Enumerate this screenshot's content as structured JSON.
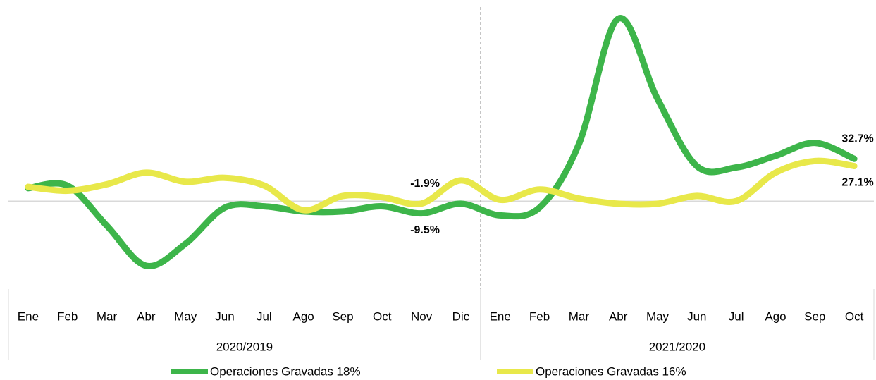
{
  "chart_data": {
    "type": "line",
    "groups": [
      {
        "name": "2020/2019",
        "categories": [
          "Ene",
          "Feb",
          "Mar",
          "Abr",
          "May",
          "Jun",
          "Jul",
          "Ago",
          "Sep",
          "Oct",
          "Nov",
          "Dic"
        ]
      },
      {
        "name": "2021/2020",
        "categories": [
          "Ene",
          "Feb",
          "Mar",
          "Abr",
          "May",
          "Jun",
          "Jul",
          "Ago",
          "Sep",
          "Oct"
        ]
      }
    ],
    "ylim": [
      -68,
      150
    ],
    "series": [
      {
        "name": "Operaciones Gravadas 18%",
        "color": "#3db54a",
        "values": [
          10,
          12,
          -19,
          -50,
          -33,
          -5,
          -4,
          -8,
          -8,
          -4,
          -9.5,
          -2,
          -11,
          -5,
          44,
          141,
          79,
          27,
          26,
          35,
          45,
          32.7
        ],
        "value_labels": [
          null,
          null,
          null,
          null,
          null,
          null,
          null,
          null,
          null,
          null,
          "-9.5%",
          null,
          null,
          null,
          null,
          null,
          null,
          null,
          null,
          null,
          null,
          "32.7%"
        ]
      },
      {
        "name": "Operaciones Gravadas 16%",
        "color": "#e8e84a",
        "values": [
          11,
          8,
          13,
          22,
          15,
          18,
          12,
          -7,
          4,
          3,
          -1.9,
          16,
          1,
          9,
          2,
          -2,
          -2,
          4,
          0,
          22,
          31,
          27.1
        ],
        "value_labels": [
          null,
          null,
          null,
          null,
          null,
          null,
          null,
          null,
          null,
          null,
          "-1.9%",
          null,
          null,
          null,
          null,
          null,
          null,
          null,
          null,
          null,
          null,
          "27.1%"
        ]
      }
    ]
  }
}
